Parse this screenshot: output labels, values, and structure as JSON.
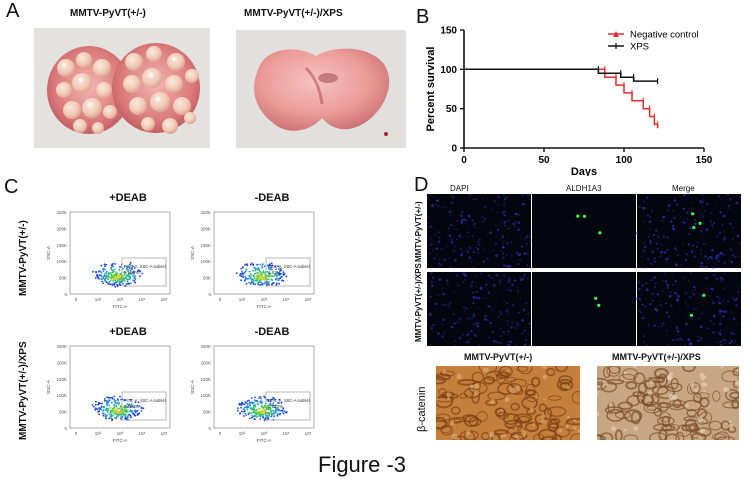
{
  "panel_a": {
    "label": "A",
    "left_title": "MMTV-PyVT(+/-)",
    "right_title": "MMTV-PyVT(+/-)/XPS"
  },
  "panel_b": {
    "label": "B"
  },
  "panel_c": {
    "label": "C",
    "col_titles": [
      "+DEAB",
      "-DEAB",
      "+DEAB",
      "-DEAB"
    ],
    "row_labels": [
      "MMTV-PyVT(+/-)",
      "MMTV-PyVT(+/-)/XPS"
    ],
    "gate_label": "FITC-A, SSC-A subset",
    "gate_values": [
      "0.588%",
      "1.82%",
      "0.603%",
      "0.823%"
    ],
    "x_axis": "FITC-A",
    "y_axis": "SSC-A",
    "y_ticks": [
      "250K",
      "200K",
      "150K",
      "100K",
      "50K",
      "0"
    ],
    "x_ticks": [
      "0",
      "10²",
      "10³",
      "10⁴",
      "10⁵"
    ]
  },
  "panel_d": {
    "label": "D",
    "col_titles": [
      "DAPI",
      "ALDH1A3",
      "Merge"
    ],
    "row_labels": [
      "MMTV-PyVT(+/-)",
      "MMTV-PyVT(+/-)/XPS"
    ],
    "ihc_left_title": "MMTV-PyVT(+/-)",
    "ihc_right_title": "MMTV-PyVT(+/-)/XPS",
    "ihc_row_label": "β-catenin"
  },
  "caption": "Figure -3",
  "chart_data": {
    "type": "line",
    "xlabel": "Days",
    "ylabel": "Percent survival",
    "xlim": [
      0,
      150
    ],
    "ylim": [
      0,
      150
    ],
    "x_ticks": [
      0,
      50,
      100,
      150
    ],
    "y_ticks": [
      0,
      50,
      100,
      150
    ],
    "legend_position": "top-right",
    "series": [
      {
        "name": "Negative control",
        "color": "#e03030",
        "steps": [
          [
            0,
            100
          ],
          [
            88,
            100
          ],
          [
            88,
            90
          ],
          [
            95,
            90
          ],
          [
            95,
            80
          ],
          [
            100,
            80
          ],
          [
            100,
            70
          ],
          [
            105,
            70
          ],
          [
            105,
            60
          ],
          [
            112,
            60
          ],
          [
            112,
            50
          ],
          [
            116,
            50
          ],
          [
            116,
            40
          ],
          [
            119,
            40
          ],
          [
            119,
            30
          ],
          [
            121,
            30
          ],
          [
            121,
            25
          ]
        ]
      },
      {
        "name": "XPS",
        "color": "#111111",
        "steps": [
          [
            0,
            100
          ],
          [
            84,
            100
          ],
          [
            84,
            95
          ],
          [
            98,
            95
          ],
          [
            98,
            90
          ],
          [
            106,
            90
          ],
          [
            106,
            85
          ],
          [
            121,
            85
          ]
        ]
      }
    ]
  }
}
